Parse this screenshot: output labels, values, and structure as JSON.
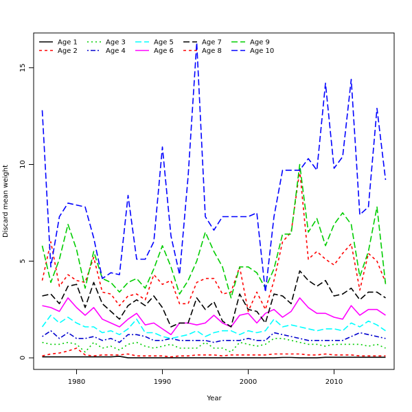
{
  "chart_data": {
    "type": "line",
    "title": "",
    "xlabel": "Year",
    "ylabel": "Discard mean weight",
    "xlim": [
      1975,
      2017
    ],
    "ylim": [
      -0.6,
      16.8
    ],
    "xticks": [
      1980,
      1990,
      2000,
      2010
    ],
    "yticks": [
      0,
      5,
      10,
      15
    ],
    "x": [
      1976,
      1977,
      1978,
      1979,
      1980,
      1981,
      1982,
      1983,
      1984,
      1985,
      1986,
      1987,
      1988,
      1989,
      1990,
      1991,
      1992,
      1993,
      1994,
      1995,
      1996,
      1997,
      1998,
      1999,
      2000,
      2001,
      2002,
      2003,
      2004,
      2005,
      2006,
      2007,
      2008,
      2009,
      2010,
      2011,
      2012,
      2013,
      2014,
      2015,
      2016
    ],
    "legend_position": "top-left",
    "series": [
      {
        "name": "Age 1",
        "color": "#000000",
        "dash": "solid",
        "values": [
          0.05,
          0.05,
          0.05,
          0.05,
          0.05,
          0.05,
          0.05,
          0.05,
          0.05,
          0.08,
          0.0,
          0.0,
          0.0,
          0.0,
          0.0,
          0.0,
          0.0,
          0.0,
          0.0,
          0.0,
          0.0,
          0.0,
          0.0,
          0.0,
          0.0,
          0.0,
          0.0,
          0.0,
          0.02,
          0.02,
          0.0,
          0.0,
          0.0,
          0.03,
          0.03,
          0.03,
          0.03,
          0.03,
          0.03,
          0.03,
          0.03
        ]
      },
      {
        "name": "Age 2",
        "color": "#ff0000",
        "dash": "short",
        "values": [
          0.1,
          0.2,
          0.25,
          0.35,
          0.5,
          0.15,
          0.1,
          0.15,
          0.15,
          0.15,
          0.2,
          0.1,
          0.1,
          0.1,
          0.1,
          0.05,
          0.1,
          0.1,
          0.15,
          0.15,
          0.15,
          0.1,
          0.15,
          0.15,
          0.15,
          0.15,
          0.15,
          0.2,
          0.2,
          0.2,
          0.2,
          0.15,
          0.15,
          0.2,
          0.15,
          0.15,
          0.15,
          0.1,
          0.1,
          0.1,
          0.1
        ]
      },
      {
        "name": "Age 3",
        "color": "#00cd00",
        "dash": "dot",
        "values": [
          0.8,
          0.7,
          0.7,
          0.8,
          0.7,
          0.3,
          0.8,
          0.5,
          0.6,
          0.4,
          0.7,
          0.8,
          0.6,
          0.5,
          0.6,
          0.7,
          0.5,
          0.5,
          0.5,
          0.8,
          0.5,
          0.5,
          0.3,
          0.8,
          0.7,
          0.6,
          0.7,
          1.0,
          1.0,
          0.9,
          0.8,
          0.7,
          0.7,
          0.6,
          0.7,
          0.7,
          0.7,
          0.7,
          0.6,
          0.7,
          0.5
        ]
      },
      {
        "name": "Age 4",
        "color": "#0000cd",
        "dash": "dotdash",
        "values": [
          1.1,
          1.4,
          1.0,
          1.3,
          1.0,
          1.0,
          1.1,
          0.9,
          1.0,
          0.8,
          1.2,
          1.2,
          1.1,
          0.9,
          0.9,
          1.0,
          0.9,
          0.9,
          0.9,
          0.9,
          0.8,
          0.9,
          0.9,
          0.9,
          1.0,
          0.9,
          0.9,
          1.3,
          1.2,
          1.1,
          1.0,
          0.9,
          0.9,
          0.9,
          0.9,
          0.9,
          1.1,
          1.3,
          1.2,
          1.1,
          1.0
        ]
      },
      {
        "name": "Age 5",
        "color": "#00ffff",
        "dash": "longdash",
        "values": [
          1.6,
          2.2,
          1.8,
          2.1,
          1.8,
          1.6,
          1.6,
          1.3,
          1.4,
          1.2,
          1.5,
          2.0,
          1.3,
          1.3,
          1.1,
          1.0,
          1.1,
          1.2,
          1.4,
          1.1,
          1.3,
          1.4,
          1.4,
          1.2,
          1.4,
          1.3,
          1.4,
          2.0,
          1.6,
          1.7,
          1.6,
          1.5,
          1.4,
          1.5,
          1.5,
          1.4,
          1.8,
          1.6,
          1.9,
          1.7,
          1.4
        ]
      },
      {
        "name": "Age 6",
        "color": "#ff00ff",
        "dash": "solid",
        "values": [
          2.7,
          2.6,
          2.4,
          3.1,
          2.6,
          2.2,
          2.6,
          2.0,
          1.8,
          1.6,
          2.0,
          2.3,
          1.7,
          1.8,
          1.5,
          1.2,
          1.8,
          1.8,
          1.7,
          1.8,
          2.2,
          1.8,
          1.6,
          2.2,
          2.3,
          1.8,
          2.3,
          2.5,
          2.1,
          2.4,
          3.1,
          2.6,
          2.3,
          2.3,
          2.1,
          2.0,
          2.7,
          2.2,
          2.5,
          2.5,
          2.2
        ]
      },
      {
        "name": "Age 7",
        "color": "#000000",
        "dash": "longdash",
        "values": [
          3.2,
          3.3,
          2.8,
          3.7,
          3.8,
          2.6,
          3.9,
          2.8,
          2.4,
          2.0,
          2.7,
          3.0,
          2.7,
          3.2,
          2.6,
          1.6,
          1.8,
          1.8,
          3.1,
          2.5,
          2.9,
          1.9,
          1.6,
          3.3,
          2.5,
          2.4,
          1.8,
          3.3,
          3.2,
          2.8,
          4.5,
          4.0,
          3.7,
          4.0,
          3.2,
          3.3,
          3.6,
          3.0,
          3.4,
          3.4,
          3.1
        ]
      },
      {
        "name": "Age 8",
        "color": "#ff0000",
        "dash": "short",
        "values": [
          4.0,
          6.0,
          3.7,
          4.3,
          4.0,
          3.9,
          5.2,
          3.4,
          3.3,
          2.7,
          3.2,
          3.3,
          3.0,
          4.3,
          3.8,
          4.0,
          2.8,
          2.8,
          3.9,
          4.1,
          4.1,
          3.3,
          3.4,
          4.7,
          2.4,
          3.4,
          2.5,
          4.0,
          6.0,
          6.5,
          9.7,
          5.1,
          5.5,
          5.1,
          4.8,
          5.4,
          5.9,
          3.5,
          5.4,
          5.0,
          3.9
        ]
      },
      {
        "name": "Age 9",
        "color": "#00cd00",
        "dash": "longdash",
        "values": [
          5.8,
          3.9,
          5.1,
          6.9,
          5.6,
          3.6,
          5.5,
          4.1,
          3.9,
          3.4,
          3.9,
          4.1,
          3.6,
          4.6,
          5.8,
          4.7,
          3.3,
          4.0,
          5.0,
          6.5,
          5.5,
          4.7,
          3.1,
          4.7,
          4.7,
          4.4,
          3.6,
          4.6,
          6.4,
          6.4,
          10.0,
          6.5,
          7.2,
          5.8,
          6.9,
          7.5,
          6.9,
          4.2,
          5.5,
          7.8,
          3.8
        ]
      },
      {
        "name": "Age 10",
        "color": "#0000ff",
        "dash": "longdash",
        "values": [
          12.8,
          4.7,
          7.3,
          8.0,
          7.9,
          7.8,
          6.2,
          4.1,
          4.4,
          4.3,
          8.4,
          5.1,
          5.1,
          6.0,
          10.9,
          6.3,
          4.3,
          9.4,
          16.3,
          7.3,
          6.6,
          7.3,
          7.3,
          7.3,
          7.3,
          7.5,
          3.4,
          7.3,
          9.7,
          9.7,
          9.7,
          10.3,
          9.7,
          14.2,
          9.8,
          10.4,
          14.4,
          7.4,
          7.8,
          12.9,
          9.2
        ]
      }
    ]
  }
}
